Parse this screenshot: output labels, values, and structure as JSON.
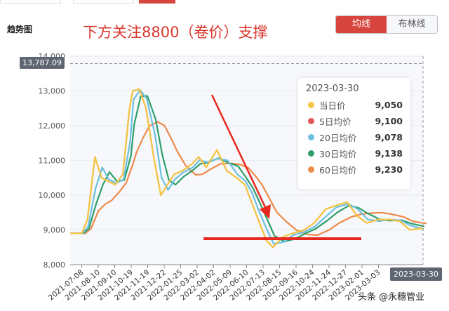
{
  "header": {
    "heading": "趋势图",
    "title": "下方关注8800（卷价）支撑",
    "toggle": [
      "均线",
      "布林线"
    ]
  },
  "tooltip": {
    "date": "2023-03-30",
    "rows": [
      {
        "label": "当日价",
        "value": "9,050",
        "color": "#f4c542"
      },
      {
        "label": "5日均价",
        "value": "9,100",
        "color": "#e05a57"
      },
      {
        "label": "20日均价",
        "value": "9,078",
        "color": "#6bbfe0"
      },
      {
        "label": "30日均价",
        "value": "9,138",
        "color": "#2e9e6a"
      },
      {
        "label": "60日均价",
        "value": "9,230",
        "color": "#ee8a4a"
      }
    ]
  },
  "crosshair": {
    "y_value": "13,787.09",
    "x_value": "2023-03-30"
  },
  "watermark": "头条 @永穗管业",
  "chart_data": {
    "type": "line",
    "title": "下方关注8800（卷价）支撑",
    "ylim": [
      8000,
      14000
    ],
    "yticks": [
      "8,000",
      "9,000",
      "10,000",
      "11,000",
      "12,000",
      "13,000",
      "14,000"
    ],
    "xticks": [
      "2021-07-08",
      "2021-08-10",
      "2021-09-10",
      "2021-10-19",
      "2021-11-19",
      "2021-12-22",
      "2022-01-25",
      "2022-03-02",
      "2022-04-02",
      "2022-05-09",
      "2022-06-10",
      "2022-07-13",
      "2022-08-15",
      "2022-09-16",
      "2022-10-24",
      "2022-11-24",
      "2022-12-27",
      "2023-02-01",
      "2023-03-03"
    ],
    "x_index_range": [
      -0.7,
      20.7
    ],
    "price_x": [
      -0.7,
      0,
      0.35,
      0.8,
      1.2,
      1.6,
      2.05,
      2.5,
      2.9,
      3.1,
      3.5,
      3.9,
      4.4,
      4.8,
      5.2,
      5.6,
      6.1,
      6.7,
      7.1,
      7.55,
      8.2,
      8.8,
      9.4,
      9.9,
      10.3,
      10.7,
      11.2,
      11.6,
      12.2,
      12.8,
      13.5,
      14.1,
      14.8,
      15.4,
      16.1,
      16.7,
      17.3,
      18,
      18.6,
      19.3,
      19.9,
      20.7
    ],
    "price": [
      8900,
      8900,
      9300,
      11100,
      10500,
      10400,
      10300,
      10600,
      12500,
      13000,
      13050,
      12500,
      11000,
      10000,
      10300,
      10600,
      10700,
      10900,
      11100,
      10800,
      11300,
      10700,
      10500,
      10300,
      9800,
      9300,
      8700,
      8500,
      8800,
      8900,
      9000,
      9200,
      9600,
      9700,
      9800,
      9400,
      9200,
      9300,
      9300,
      9250,
      9000,
      9050
    ],
    "series": [
      {
        "name": "当日价",
        "color": "#f4c542",
        "window": 1
      },
      {
        "name": "5日均价",
        "color": "#e05a57",
        "window": 1
      },
      {
        "name": "20日均价",
        "color": "#6bbfe0",
        "window": 2
      },
      {
        "name": "30日均价",
        "color": "#2e9e6a",
        "window": 3
      },
      {
        "name": "60日均价",
        "color": "#ee8a4a",
        "window": 6
      }
    ],
    "annotations": [
      "red arrow pointing down",
      "red support line at ~8800"
    ]
  }
}
